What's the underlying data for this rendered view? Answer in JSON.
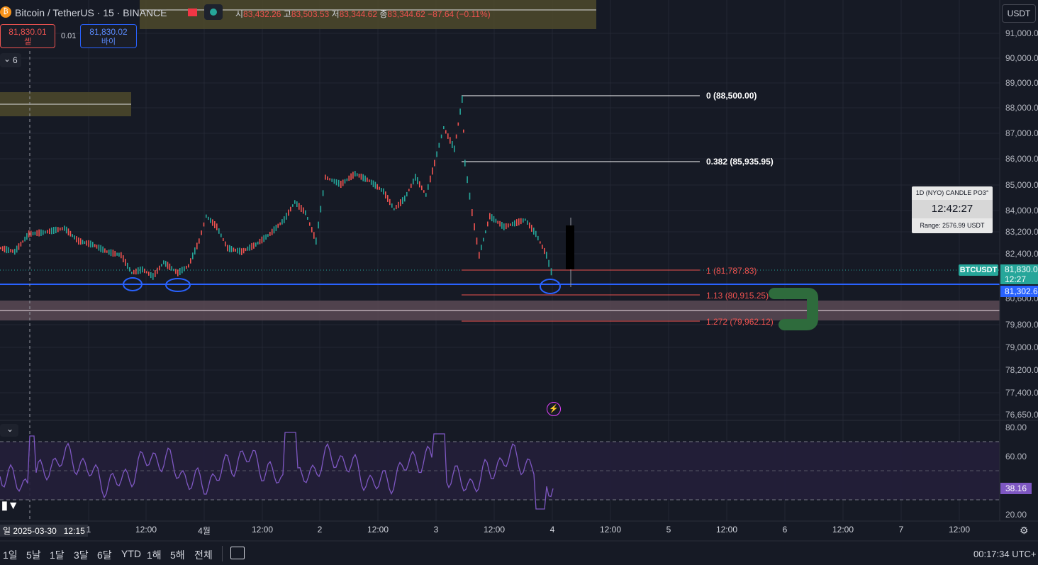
{
  "header": {
    "symbol_title": "Bitcoin / TetherUS · 15 · BINANCE",
    "ohlc": {
      "o_label": "시",
      "o_value": "83,432.26",
      "h_label": "고",
      "h_value": "83,503.53",
      "l_label": "저",
      "l_value": "83,344.62",
      "c_label": "종",
      "c_value": "83,344.62",
      "change": "−87.64 (−0.11%)"
    }
  },
  "trade": {
    "sell_price": "81,830.01",
    "sell_label": "셀",
    "spread": "0.01",
    "buy_price": "81,830.02",
    "buy_label": "바이"
  },
  "indicators_toggle": {
    "count": "6"
  },
  "price_axis": {
    "currency": "USDT",
    "labels": [
      "91,000.00",
      "90,000.00",
      "89,000.00",
      "88,000.00",
      "87,000.00",
      "86,000.00",
      "85,000.00",
      "84,000.00",
      "83,200.00",
      "82,400.00",
      "80,600.00",
      "79,800.00",
      "79,000.00",
      "78,200.00",
      "77,400.00",
      "76,650.00"
    ],
    "symbol_tag": "BTCUSDT",
    "current_price": "81,830.0",
    "countdown": "12:27",
    "line_price": "81,302.6"
  },
  "rsi_axis": {
    "labels": [
      "80.00",
      "60.00",
      "40.00",
      "20.00"
    ],
    "current_value": "38.16"
  },
  "fib_levels": [
    {
      "label": "0 (88,500.00)"
    },
    {
      "label": "0.382 (85,935.95)"
    },
    {
      "label": "1 (81,787.83)"
    },
    {
      "label": "1.13 (80,915.25)"
    },
    {
      "label": "1.272 (79,962.12)"
    }
  ],
  "candle_info": {
    "title": "1D (NYO) CANDLE PO3°",
    "time": "12:42:27",
    "range": "Range: 2576.99 USDT"
  },
  "time_axis": {
    "labels": [
      "1",
      "12:00",
      "4월",
      "12:00",
      "2",
      "12:00",
      "3",
      "12:00",
      "4",
      "12:00",
      "5",
      "12:00",
      "6",
      "12:00",
      "7",
      "12:00"
    ],
    "crosshair_label": "일 2025-03-30   12:15"
  },
  "bottom_bar": {
    "ranges": [
      "1일",
      "5날",
      "1달",
      "3달",
      "6달",
      "YTD",
      "1해",
      "5해",
      "전체"
    ],
    "clock": "00:17:34 UTC+"
  },
  "colors": {
    "background": "#161a25",
    "up": "#26a69a",
    "down": "#ef5350",
    "rsi": "#7e57c2",
    "blue_line": "#2962ff"
  },
  "icons": [
    "bitcoin-icon",
    "flag-icon",
    "status-dot-icon",
    "chevron-down-icon",
    "lightning-icon",
    "settings-icon",
    "date-range-icon",
    "tradingview-logo-icon"
  ]
}
